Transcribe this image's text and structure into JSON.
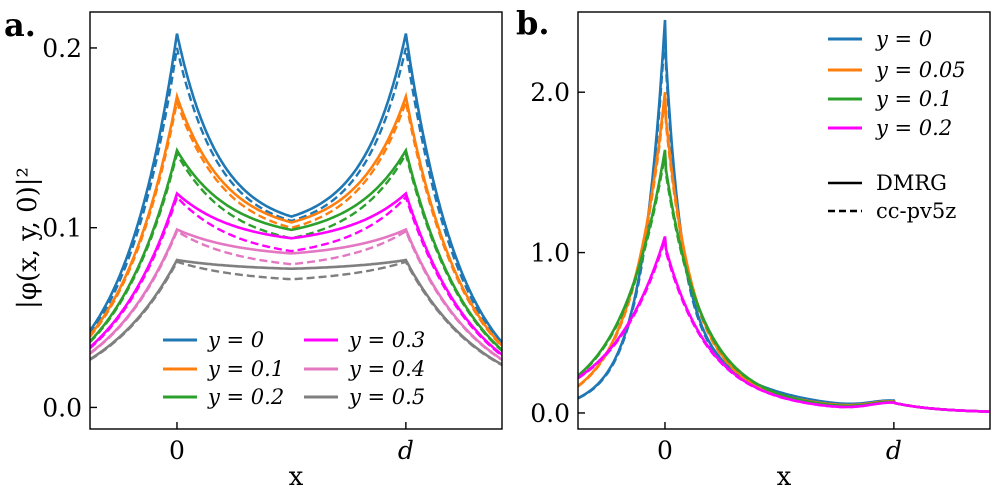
{
  "panels": [
    {
      "label": "a.",
      "ylabel": "|φ(x, y, 0)|²",
      "xlabel": "x",
      "xticks": [
        "0",
        "d"
      ],
      "yticks": [
        "0.0",
        "0.1",
        "0.2"
      ],
      "legend_entries": [
        "y = 0",
        "y = 0.1",
        "y = 0.2",
        "y = 0.3",
        "y = 0.4",
        "y = 0.5"
      ]
    },
    {
      "label": "b.",
      "xlabel": "x",
      "xticks": [
        "0",
        "d"
      ],
      "yticks": [
        "0.0",
        "1.0",
        "2.0"
      ],
      "legend_entries": [
        "y = 0",
        "y = 0.05",
        "y = 0.1",
        "y = 0.2"
      ],
      "style_entries": [
        "DMRG",
        "cc-pv5z"
      ]
    }
  ],
  "chart_data": [
    {
      "type": "line",
      "title": "a.",
      "xlabel": "x",
      "ylabel": "|φ(x, y, 0)|²",
      "x_ticks": [
        {
          "value": 0,
          "label": "0"
        },
        {
          "value": 1,
          "label": "d"
        }
      ],
      "xlim": [
        -0.38,
        1.42
      ],
      "ylim": [
        -0.012,
        0.22
      ],
      "y_ticks": [
        0.0,
        0.1,
        0.2
      ],
      "series": [
        {
          "name": "y = 0",
          "color": "#1f77b4",
          "peak": 0.208,
          "mid": 0.099,
          "dashed_peak": 0.2,
          "dashed_mid": 0.097
        },
        {
          "name": "y = 0.1",
          "color": "#ff7f0e",
          "peak": 0.173,
          "mid": 0.096,
          "dashed_peak": 0.17,
          "dashed_mid": 0.093
        },
        {
          "name": "y = 0.2",
          "color": "#2ca02c",
          "peak": 0.143,
          "mid": 0.093,
          "dashed_peak": 0.141,
          "dashed_mid": 0.088
        },
        {
          "name": "y = 0.3",
          "color": "#ff00ff",
          "peak": 0.119,
          "mid": 0.09,
          "dashed_peak": 0.117,
          "dashed_mid": 0.082
        },
        {
          "name": "y = 0.4",
          "color": "#e377c2",
          "peak": 0.099,
          "mid": 0.083,
          "dashed_peak": 0.098,
          "dashed_mid": 0.076
        },
        {
          "name": "y = 0.5",
          "color": "#7f7f7f",
          "peak": 0.082,
          "mid": 0.076,
          "dashed_peak": 0.081,
          "dashed_mid": 0.069
        }
      ],
      "line_styles": {
        "solid": "DMRG",
        "dashed": "cc-pv5z"
      }
    },
    {
      "type": "line",
      "title": "b.",
      "xlabel": "x",
      "ylabel": "",
      "x_ticks": [
        {
          "value": 0,
          "label": "0"
        },
        {
          "value": 1,
          "label": "d"
        }
      ],
      "xlim": [
        -0.38,
        1.42
      ],
      "ylim": [
        -0.1,
        2.5
      ],
      "y_ticks": [
        0.0,
        1.0,
        2.0
      ],
      "series": [
        {
          "name": "y = 0",
          "color": "#1f77b4",
          "peak": 2.45,
          "dashed_peak": 2.38
        },
        {
          "name": "y = 0.05",
          "color": "#ff7f0e",
          "peak": 2.0,
          "dashed_peak": 1.96
        },
        {
          "name": "y = 0.1",
          "color": "#2ca02c",
          "peak": 1.64,
          "dashed_peak": 1.61
        },
        {
          "name": "y = 0.2",
          "color": "#ff00ff",
          "peak": 1.1,
          "dashed_peak": 1.08
        }
      ],
      "line_styles": {
        "solid": "DMRG",
        "dashed": "cc-pv5z"
      }
    }
  ]
}
